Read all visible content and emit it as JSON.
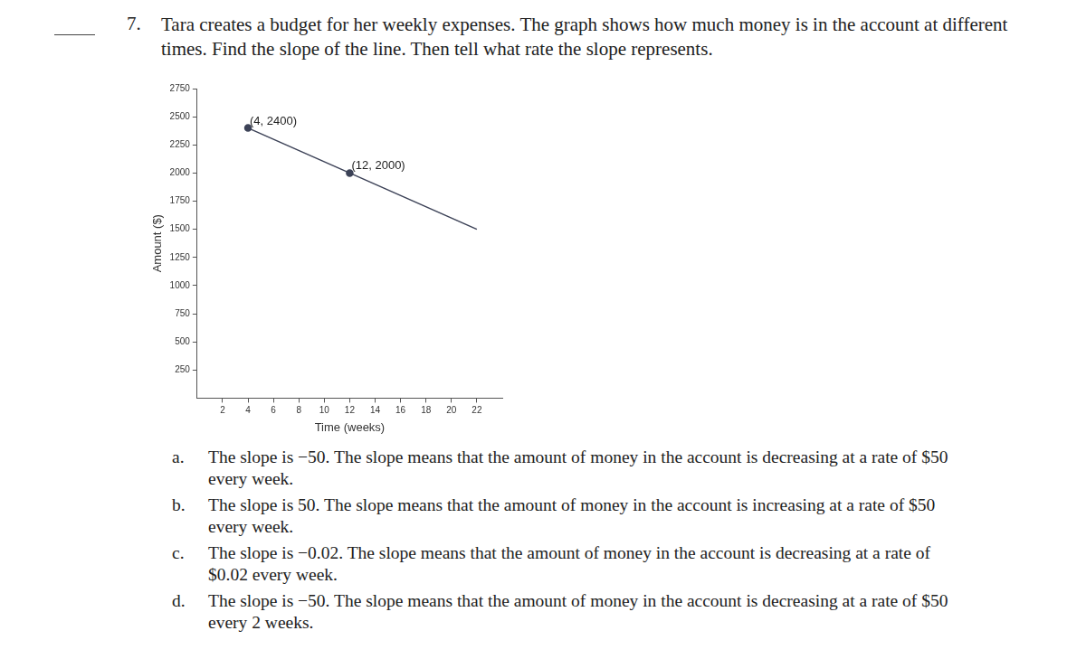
{
  "question": {
    "number": "7.",
    "text": "Tara creates a budget for her weekly expenses. The graph shows how much money is in the account at different times. Find the slope of the line. Then tell what rate the slope represents."
  },
  "chart_data": {
    "type": "line",
    "x": [
      4,
      12,
      22
    ],
    "values": [
      2400,
      2000,
      1500
    ],
    "point_labels": [
      "(4, 2400)",
      "(12, 2000)",
      null
    ],
    "marker": "circle",
    "color": "#3c4257",
    "xlabel": "Time (weeks)",
    "ylabel": "Amount ($)",
    "xlim": [
      0,
      24
    ],
    "ylim": [
      0,
      2750
    ],
    "xticks": [
      2,
      4,
      6,
      8,
      10,
      12,
      14,
      16,
      18,
      20,
      22
    ],
    "yticks": [
      250,
      500,
      750,
      1000,
      1250,
      1500,
      1750,
      2000,
      2250,
      2500,
      2750
    ],
    "grid": false
  },
  "choices": [
    {
      "letter": "a.",
      "text": "The slope is −50. The slope means that the amount of money in the account is decreasing at a rate of $50 every week."
    },
    {
      "letter": "b.",
      "text": "The slope is 50. The slope means that the amount of money in the account is increasing at a rate of $50 every week."
    },
    {
      "letter": "c.",
      "text": "The slope is −0.02. The slope means that the amount of money in the account is decreasing at a rate of $0.02 every week."
    },
    {
      "letter": "d.",
      "text": "The slope is −50. The slope means that the amount of money in the account is decreasing at a rate of $50 every 2 weeks."
    }
  ]
}
